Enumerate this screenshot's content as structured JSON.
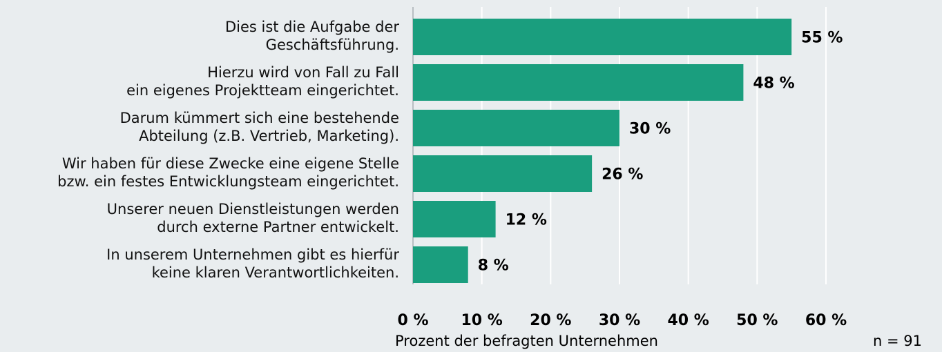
{
  "chart_data": {
    "type": "barh",
    "categories": [
      "Dies ist die Aufgabe der\nGeschäftsführung.",
      "Hierzu wird von Fall zu Fall\nein eigenes Projektteam eingerichtet.",
      "Darum kümmert sich eine bestehende\nAbteilung (z.B. Vertrieb, Marketing).",
      "Wir haben für diese Zwecke eine eigene Stelle\nbzw. ein festes Entwicklungsteam eingerichtet.",
      "Unserer neuen Dienstleistungen werden\ndurch externe Partner entwickelt.",
      "In unserem Unternehmen gibt es hierfür\nkeine klaren Verantwortlichkeiten."
    ],
    "values": [
      55,
      48,
      30,
      26,
      12,
      8
    ],
    "value_labels": [
      "55 %",
      "48 %",
      "30 %",
      "26 %",
      "12 %",
      "8 %"
    ],
    "color": "#1a9e7e",
    "xlim": [
      0,
      60
    ],
    "xticks": [
      {
        "value": 0,
        "label": "0 %"
      },
      {
        "value": 10,
        "label": "10 %"
      },
      {
        "value": 20,
        "label": "20 %"
      },
      {
        "value": 30,
        "label": "30 %"
      },
      {
        "value": 40,
        "label": "40 %"
      },
      {
        "value": 50,
        "label": "50 %"
      },
      {
        "value": 60,
        "label": "60 %"
      }
    ],
    "grid": true,
    "xlabel": "Prozent der befragten Unternehmen",
    "annotation": "n = 91"
  }
}
